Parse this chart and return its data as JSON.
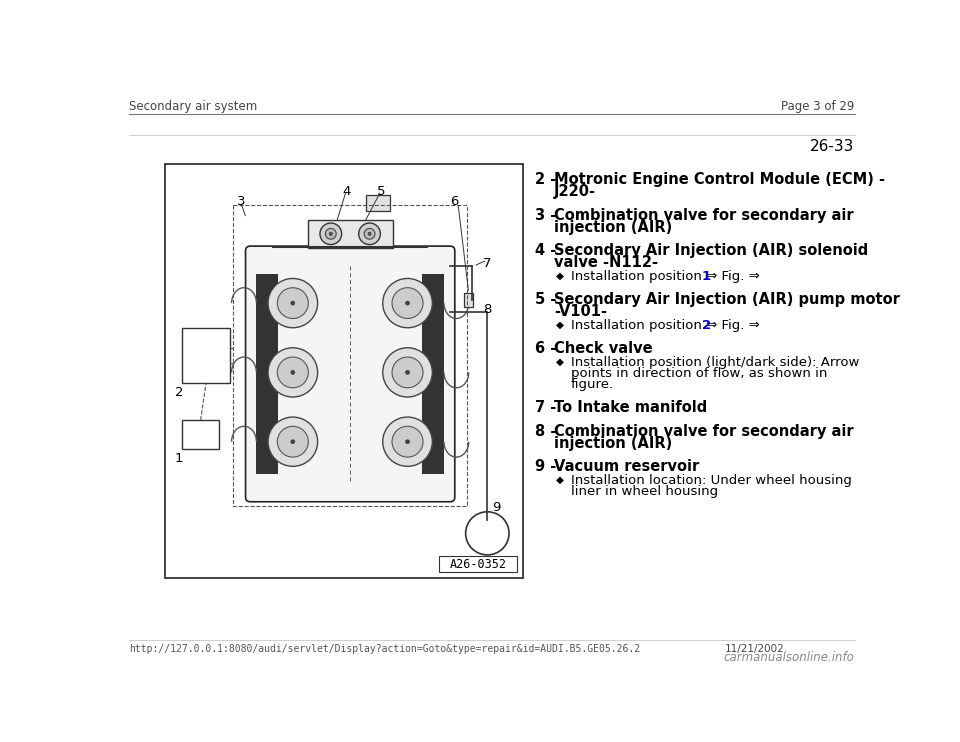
{
  "bg_color": "#ffffff",
  "header_left": "Secondary air system",
  "header_right": "Page 3 of 29",
  "page_number": "26-33",
  "footer_url": "http://127.0.0.1:8080/audi/servlet/Display?action=Goto&type=repair&id=AUDI.B5.GE05.26.2",
  "footer_right": "11/21/2002",
  "footer_watermark": "carmanualsonline.info",
  "items": [
    {
      "num": "2",
      "line1": "Motronic Engine Control Module (ECM) -",
      "line2": "J220-",
      "sub_items": []
    },
    {
      "num": "3",
      "line1": "Combination valve for secondary air",
      "line2": "injection (AIR)",
      "sub_items": []
    },
    {
      "num": "4",
      "line1": "Secondary Air Injection (AIR) solenoid",
      "line2": "valve -N112-",
      "sub_items": [
        {
          "text": "Installation position ⇒ Fig. ⇒ ",
          "link": "1"
        }
      ]
    },
    {
      "num": "5",
      "line1": "Secondary Air Injection (AIR) pump motor",
      "line2": "-V101-",
      "sub_items": [
        {
          "text": "Installation position ⇒ Fig. ⇒ ",
          "link": "2"
        }
      ]
    },
    {
      "num": "6",
      "line1": "Check valve",
      "line2": null,
      "sub_items": [
        {
          "text": "Installation position (light/dark side): Arrow\npoints in direction of flow, as shown in\nfigure.",
          "link": null
        }
      ]
    },
    {
      "num": "7",
      "line1": "To Intake manifold",
      "line2": null,
      "sub_items": []
    },
    {
      "num": "8",
      "line1": "Combination valve for secondary air",
      "line2": "injection (AIR)",
      "sub_items": []
    },
    {
      "num": "9",
      "line1": "Vacuum reservoir",
      "line2": null,
      "sub_items": [
        {
          "text": "Installation location: Under wheel housing\nliner in wheel housing",
          "link": null
        }
      ]
    }
  ],
  "diagram_label": "A26-0352",
  "text_color": "#000000",
  "link_color": "#0000dd",
  "sub_text_color": "#000000"
}
